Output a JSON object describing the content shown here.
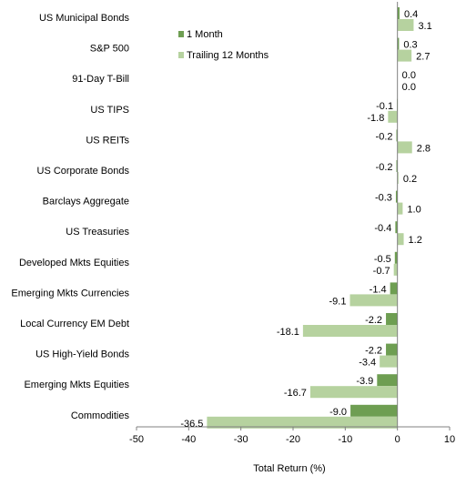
{
  "chart_data": {
    "type": "bar",
    "orientation": "horizontal",
    "categories": [
      "US Municipal Bonds",
      "S&P 500",
      "91-Day T-Bill",
      "US TIPS",
      "US REITs",
      "US Corporate Bonds",
      "Barclays Aggregate",
      "US Treasuries",
      "Developed Mkts Equities",
      "Emerging Mkts Currencies",
      "Local Currency EM Debt",
      "US High-Yield Bonds",
      "Emerging Mkts Equities",
      "Commodities"
    ],
    "series": [
      {
        "name": "1 Month",
        "color": "#6e9e52",
        "values": [
          0.4,
          0.3,
          0.0,
          -0.1,
          -0.2,
          -0.2,
          -0.3,
          -0.4,
          -0.5,
          -1.4,
          -2.2,
          -2.2,
          -3.9,
          -9.0
        ],
        "labels": [
          "0.4",
          "0.3",
          "0.0",
          "-0.1",
          "-0.2",
          "-0.2",
          "-0.3",
          "-0.4",
          "-0.5",
          "-1.4",
          "-2.2",
          "-2.2",
          "-3.9",
          "-9.0"
        ]
      },
      {
        "name": "Trailing 12 Months",
        "color": "#b6d29f",
        "values": [
          3.1,
          2.7,
          0.0,
          -1.8,
          2.8,
          0.2,
          1.0,
          1.2,
          -0.7,
          -9.1,
          -18.1,
          -3.4,
          -16.7,
          -36.5
        ],
        "labels": [
          "3.1",
          "2.7",
          "0.0",
          "-1.8",
          "2.8",
          "0.2",
          "1.0",
          "1.2",
          "-0.7",
          "-9.1",
          "-18.1",
          "-3.4",
          "-16.7",
          "-36.5"
        ]
      }
    ],
    "xlabel": "Total Return (%)",
    "ylabel": "",
    "xlim": [
      -50,
      10
    ],
    "xticks": [
      -50,
      -40,
      -30,
      -20,
      -10,
      0,
      10
    ],
    "grid": false,
    "legend_position": "top-center"
  }
}
